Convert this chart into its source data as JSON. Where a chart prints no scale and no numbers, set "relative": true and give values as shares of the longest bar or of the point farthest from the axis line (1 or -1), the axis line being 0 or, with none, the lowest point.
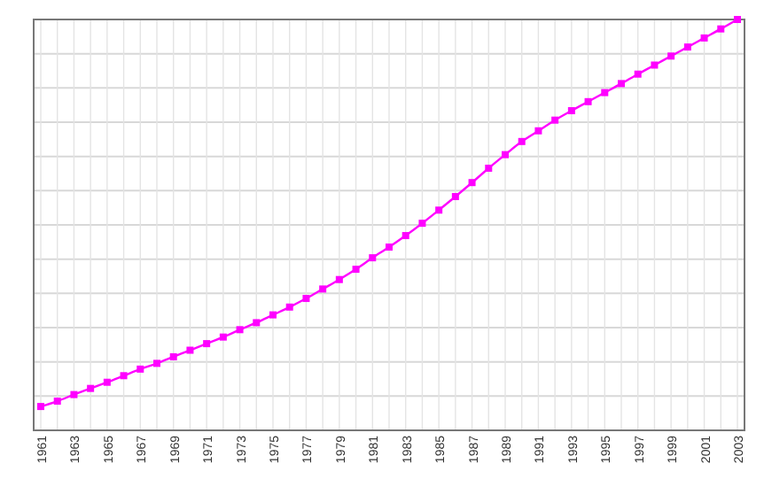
{
  "chart_data": {
    "type": "line",
    "relative": true,
    "categories": [
      "1961",
      null,
      "1963",
      null,
      "1965",
      null,
      "1967",
      null,
      "1969",
      null,
      "1971",
      null,
      "1973",
      null,
      "1975",
      null,
      "1977",
      null,
      "1979",
      null,
      "1981",
      null,
      "1983",
      null,
      "1985",
      null,
      "1987",
      null,
      "1989",
      null,
      "1991",
      null,
      "1993",
      null,
      "1995",
      null,
      "1997",
      null,
      "1999",
      null,
      "2001",
      null,
      "2003"
    ],
    "series": [
      {
        "color": "#ff00ff",
        "values": [
          0.058,
          0.071,
          0.087,
          0.102,
          0.117,
          0.133,
          0.149,
          0.163,
          0.179,
          0.195,
          0.211,
          0.227,
          0.245,
          0.262,
          0.281,
          0.3,
          0.321,
          0.344,
          0.367,
          0.392,
          0.42,
          0.446,
          0.474,
          0.504,
          0.536,
          0.569,
          0.603,
          0.638,
          0.671,
          0.703,
          0.729,
          0.755,
          0.778,
          0.8,
          0.822,
          0.844,
          0.867,
          0.889,
          0.911,
          0.933,
          0.955,
          0.977,
          1
        ]
      }
    ],
    "grid": true,
    "marker": "square",
    "line_style": "solid"
  }
}
